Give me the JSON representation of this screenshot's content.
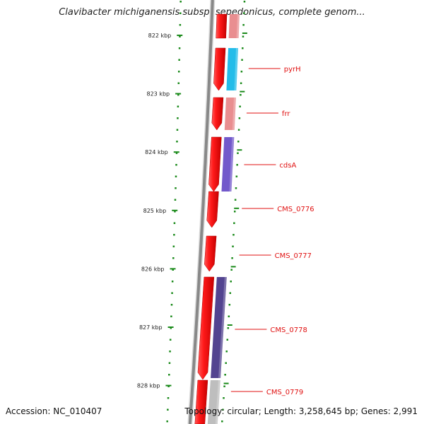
{
  "title": "Clavibacter michiganensis subsp. sepedonicus, complete genom...",
  "footer": {
    "accession": "Accession: NC_010407",
    "summary": "Topology: circular; Length: 3,258,645 bp; Genes: 2,991"
  },
  "ruler": {
    "unit": "kbp",
    "ticks": [
      {
        "label": "822 kbp",
        "position_kbp": 822
      },
      {
        "label": "823 kbp",
        "position_kbp": 823
      },
      {
        "label": "824 kbp",
        "position_kbp": 824
      },
      {
        "label": "825 kbp",
        "position_kbp": 825
      },
      {
        "label": "826 kbp",
        "position_kbp": 826
      },
      {
        "label": "827 kbp",
        "position_kbp": 827
      },
      {
        "label": "828 kbp",
        "position_kbp": 828
      }
    ]
  },
  "genes": [
    {
      "label": "",
      "color": "#e8888a"
    },
    {
      "label": "pyrH",
      "color": "#18b8e8"
    },
    {
      "label": "frr",
      "color": "#e8888a"
    },
    {
      "label": "cdsA",
      "color": "#6a50c8"
    },
    {
      "label": "CMS_0776",
      "color": null
    },
    {
      "label": "CMS_0777",
      "color": null
    },
    {
      "label": "CMS_0778",
      "color": "#4a3a8a"
    },
    {
      "label": "CMS_0779",
      "color": "#bbbbbb"
    }
  ],
  "colors": {
    "forward_strand": "#ee1010",
    "backbone": "#888888",
    "ruler_ticks": "#1a8a1a",
    "labels": "#e01010"
  }
}
